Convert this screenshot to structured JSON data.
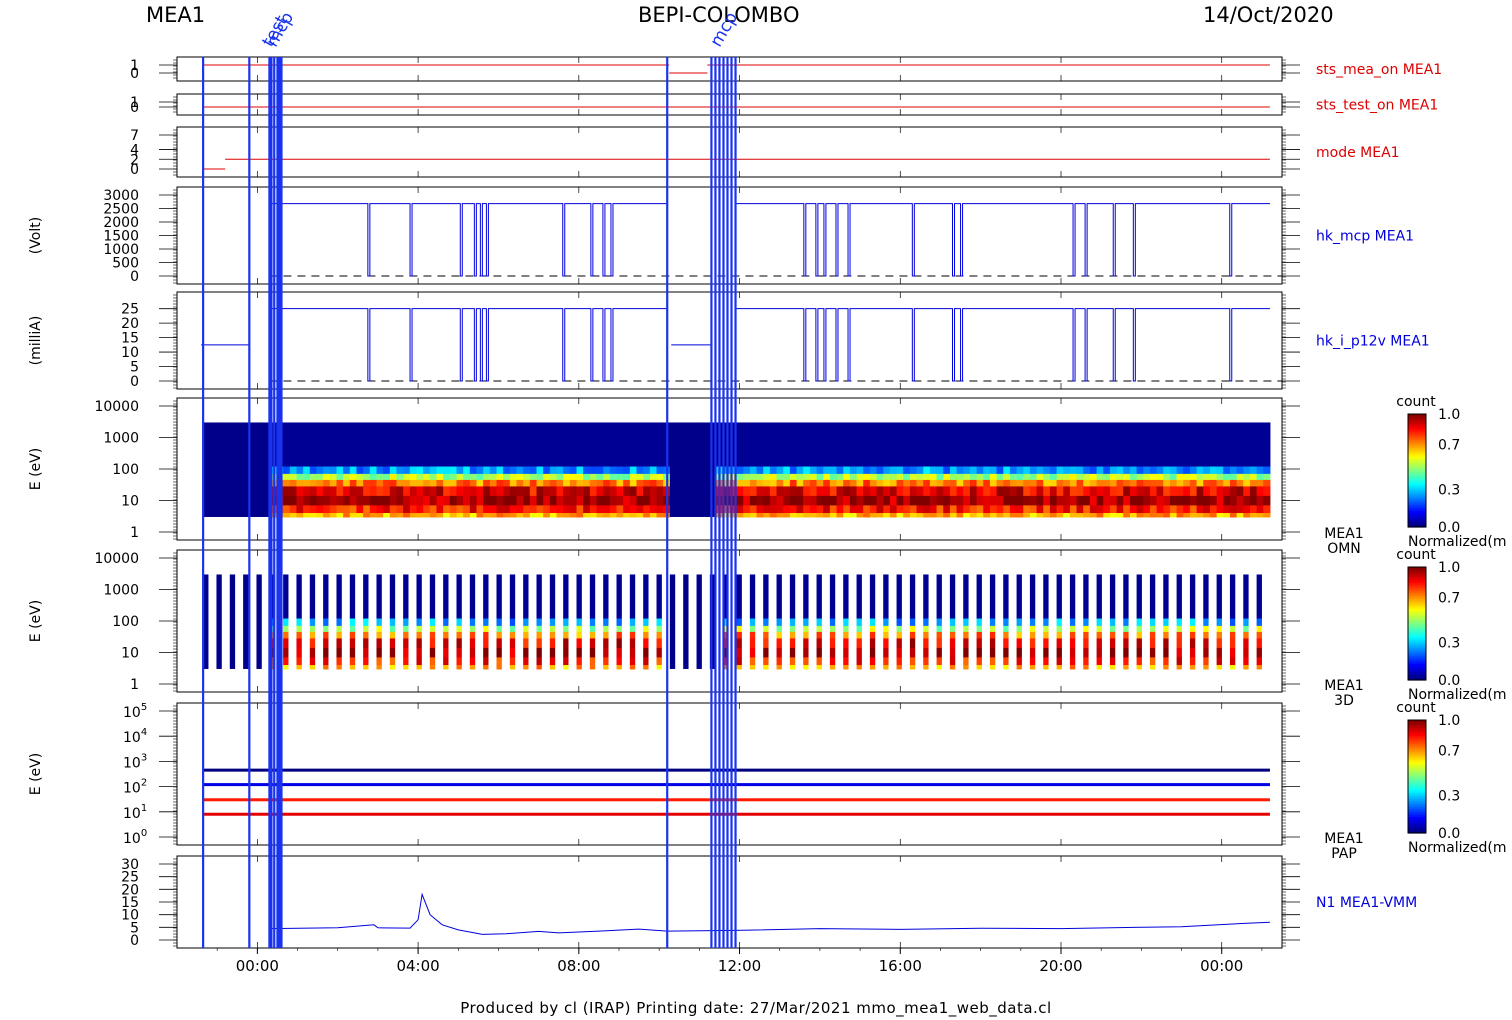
{
  "header": {
    "instrument": "MEA1",
    "mission": "BEPI-COLOMBO",
    "date": "14/Oct/2020"
  },
  "footer": {
    "text": "Produced by cl (IRAP)    Printing date: 27/Mar/2021    mmo_mea1_web_data.cl"
  },
  "colors": {
    "red": "#dd0000",
    "blue": "#0000dd",
    "event": "#1a33ee"
  },
  "colorbar": {
    "title": "count",
    "footer": "Normalized(m",
    "ticks": [
      "1.0",
      "0.7",
      "0.3",
      "0.0"
    ]
  },
  "chart_data": {
    "type": "line",
    "x_ticks": [
      "00:00",
      "04:00",
      "08:00",
      "12:00",
      "16:00",
      "20:00",
      "00:00"
    ],
    "x_tick_hours": [
      0,
      4,
      8,
      12,
      16,
      20,
      24
    ],
    "xlim_hours": [
      -2,
      25.5
    ],
    "event_labels": [
      "mcp",
      "test",
      "mcp"
    ],
    "panels": [
      {
        "id": "sts_mea_on",
        "label": "sts_mea_on MEA1",
        "ylabel": "",
        "type": "line",
        "color": "red",
        "yticks": [
          "1",
          "0"
        ],
        "ylim": [
          0,
          1
        ],
        "segments": [
          [
            [
              -1.35,
              1
            ],
            [
              10.25,
              1
            ]
          ],
          [
            [
              10.25,
              0
            ],
            [
              11.2,
              0
            ]
          ],
          [
            [
              11.2,
              1
            ],
            [
              25.2,
              1
            ]
          ]
        ]
      },
      {
        "id": "sts_test_on",
        "label": "sts_test_on MEA1",
        "ylabel": "",
        "type": "line",
        "color": "red",
        "yticks": [
          "1",
          "0"
        ],
        "ylim": [
          0,
          1
        ],
        "segments": [
          [
            [
              -1.35,
              0
            ],
            [
              25.2,
              0
            ]
          ]
        ]
      },
      {
        "id": "mode",
        "label": "mode MEA1",
        "ylabel": "",
        "type": "line",
        "color": "red",
        "yticks": [
          "7",
          "4",
          "2",
          "0"
        ],
        "ylim": [
          0,
          7
        ],
        "segments": [
          [
            [
              -1.35,
              0
            ],
            [
              -0.8,
              0
            ]
          ],
          [
            [
              -0.8,
              2
            ],
            [
              25.2,
              2
            ]
          ]
        ]
      },
      {
        "id": "hk_mcp",
        "label": "hk_mcp MEA1",
        "ylabel": "(Volt)",
        "type": "line",
        "color": "blue",
        "yticks": [
          "3000",
          "2500",
          "2000",
          "1500",
          "1000",
          "500",
          "0"
        ],
        "ylim": [
          0,
          3000
        ],
        "base": 2680,
        "dropout_hours": [
          2.75,
          3.8,
          5.05,
          5.4,
          5.55,
          5.7,
          7.6,
          8.3,
          8.6,
          8.8,
          13.6,
          13.9,
          14.1,
          14.4,
          14.7,
          16.3,
          17.3,
          17.5,
          20.3,
          20.6,
          21.3,
          21.8,
          24.2
        ]
      },
      {
        "id": "hk_i_p12v",
        "label": "hk_i_p12v MEA1",
        "ylabel": "(milliA)",
        "type": "line",
        "color": "blue",
        "yticks": [
          "25",
          "20",
          "15",
          "10",
          "5",
          "0"
        ],
        "ylim": [
          0,
          28
        ],
        "base": 25,
        "pre_level": 12.5,
        "dropout_hours": [
          2.75,
          3.8,
          5.05,
          5.4,
          5.55,
          5.7,
          7.6,
          8.3,
          8.6,
          8.8,
          13.6,
          13.9,
          14.1,
          14.4,
          14.7,
          16.3,
          17.3,
          17.5,
          20.3,
          20.6,
          21.3,
          21.8,
          24.2
        ]
      },
      {
        "id": "omn",
        "label": "MEA1",
        "label2": "OMN",
        "ylabel": "E (eV)",
        "type": "heatmap",
        "yticks": [
          "10000",
          "1000",
          "100",
          "10",
          "1"
        ],
        "ylim": [
          1,
          10000
        ],
        "yscale": "log"
      },
      {
        "id": "3d",
        "label": "MEA1",
        "label2": "3D",
        "ylabel": "E (eV)",
        "type": "heatmap",
        "yticks": [
          "10000",
          "1000",
          "100",
          "10",
          "1"
        ],
        "ylim": [
          1,
          10000
        ],
        "yscale": "log"
      },
      {
        "id": "pap",
        "label": "MEA1",
        "label2": "PAP",
        "ylabel": "E (eV)",
        "type": "heatmap",
        "ytick_exponents": [
          "5",
          "4",
          "3",
          "2",
          "1",
          "0"
        ],
        "ylim": [
          1,
          100000
        ],
        "yscale": "log",
        "bands_ev": [
          450,
          120,
          30,
          8
        ]
      },
      {
        "id": "vmm",
        "label": "N1 MEA1-VMM",
        "ylabel": "",
        "type": "line",
        "color": "blue",
        "yticks": [
          "30",
          "25",
          "20",
          "15",
          "10",
          "5",
          "0"
        ],
        "ylim": [
          0,
          30
        ],
        "points": [
          [
            0.3,
            4.5
          ],
          [
            2,
            4.8
          ],
          [
            2.9,
            6
          ],
          [
            3,
            4.8
          ],
          [
            3.8,
            4.7
          ],
          [
            4.0,
            8
          ],
          [
            4.1,
            18
          ],
          [
            4.3,
            10
          ],
          [
            4.6,
            6
          ],
          [
            5.0,
            4
          ],
          [
            5.6,
            2.2
          ],
          [
            6.2,
            2.5
          ],
          [
            7.0,
            3.4
          ],
          [
            7.5,
            2.8
          ],
          [
            8.5,
            3.5
          ],
          [
            9.5,
            4.3
          ],
          [
            10.2,
            3.5
          ],
          [
            11.9,
            3.8
          ],
          [
            14,
            4.5
          ],
          [
            16,
            4.2
          ],
          [
            18,
            4.6
          ],
          [
            20,
            4.5
          ],
          [
            22,
            5
          ],
          [
            23,
            5.2
          ],
          [
            24.5,
            6.5
          ],
          [
            25.2,
            7
          ]
        ]
      }
    ]
  }
}
